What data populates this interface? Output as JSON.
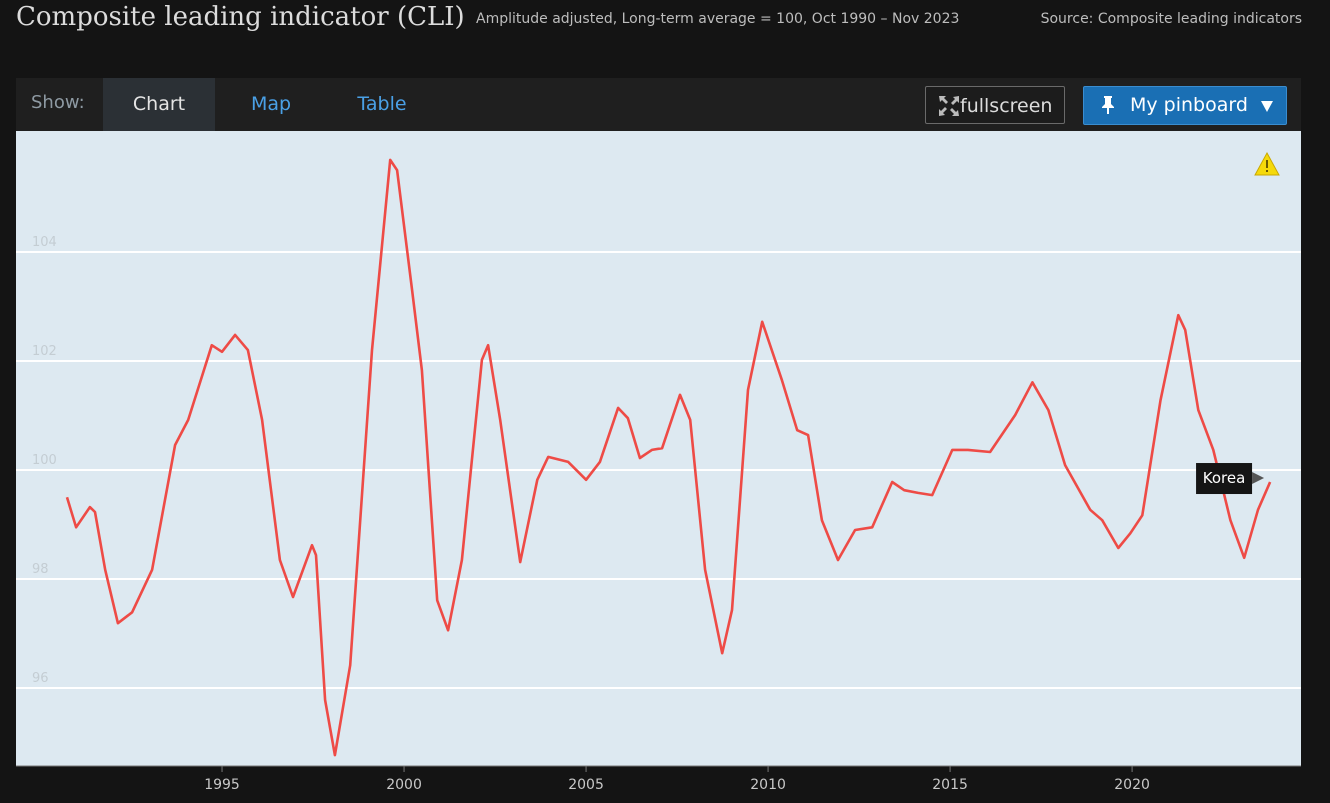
{
  "header": {
    "title": "Composite leading indicator (CLI)",
    "subtitle": "Amplitude adjusted, Long-term average = 100, Oct 1990 – Nov 2023",
    "source": "Source: Composite leading indicators"
  },
  "toolbar": {
    "show_label": "Show:",
    "tabs": [
      "Chart",
      "Map",
      "Table"
    ],
    "fullscreen": "fullscreen",
    "pinboard": "My pinboard"
  },
  "chart_data": {
    "type": "line",
    "xlim": [
      1989.34,
      2024.64
    ],
    "ylim": [
      94.57,
      106.22
    ],
    "xticks": [
      1995,
      2000,
      2005,
      2010,
      2015,
      2020
    ],
    "yticks": [
      96,
      98,
      100,
      102,
      104
    ],
    "grid": true,
    "series": [
      {
        "name": "Korea",
        "color": "#ee4b46",
        "x": [
          1990.74,
          1990.99,
          1991.37,
          1991.51,
          1991.79,
          1992.14,
          1992.53,
          1993.08,
          1993.71,
          1994.07,
          1994.72,
          1995.0,
          1995.36,
          1995.71,
          1996.1,
          1996.59,
          1996.95,
          1997.47,
          1997.58,
          1997.83,
          1998.1,
          1998.52,
          1999.12,
          1999.62,
          1999.81,
          2000.22,
          2000.49,
          2000.91,
          2001.21,
          2001.59,
          2002.14,
          2002.31,
          2002.64,
          2003.19,
          2003.66,
          2003.96,
          2004.51,
          2005.0,
          2005.38,
          2005.88,
          2006.15,
          2006.48,
          2006.81,
          2007.09,
          2007.58,
          2007.86,
          2008.27,
          2008.74,
          2009.01,
          2009.45,
          2009.84,
          2010.38,
          2010.8,
          2011.1,
          2011.48,
          2011.92,
          2012.39,
          2012.86,
          2013.41,
          2013.74,
          2014.12,
          2014.51,
          2015.06,
          2015.49,
          2016.1,
          2016.79,
          2017.26,
          2017.7,
          2018.16,
          2018.85,
          2019.18,
          2019.62,
          2019.95,
          2020.28,
          2020.78,
          2021.27,
          2021.46,
          2021.82,
          2022.23,
          2022.7,
          2023.08,
          2023.46,
          2023.79
        ],
        "values": [
          99.5,
          98.95,
          99.32,
          99.23,
          98.17,
          97.19,
          97.39,
          98.17,
          100.46,
          100.92,
          102.29,
          102.17,
          102.48,
          102.2,
          100.92,
          98.35,
          97.67,
          98.62,
          98.44,
          95.78,
          94.77,
          96.42,
          102.2,
          105.69,
          105.5,
          103.3,
          101.83,
          97.61,
          97.06,
          98.35,
          102.02,
          102.29,
          100.92,
          98.31,
          99.82,
          100.24,
          100.15,
          99.82,
          100.15,
          101.14,
          100.95,
          100.22,
          100.37,
          100.4,
          101.38,
          100.92,
          98.17,
          96.64,
          97.43,
          101.47,
          102.72,
          101.65,
          100.73,
          100.64,
          99.08,
          98.35,
          98.9,
          98.95,
          99.78,
          99.63,
          99.58,
          99.54,
          100.37,
          100.37,
          100.33,
          101.01,
          101.61,
          101.1,
          100.09,
          99.27,
          99.08,
          98.57,
          98.84,
          99.17,
          101.28,
          102.84,
          102.57,
          101.1,
          100.37,
          99.08,
          98.39,
          99.27,
          99.78
        ]
      }
    ]
  }
}
